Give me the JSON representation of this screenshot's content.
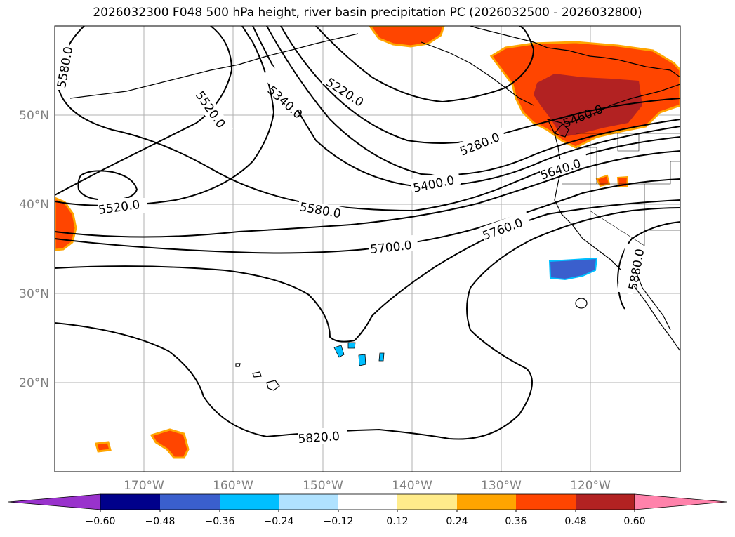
{
  "title": "2026032300 F048 500 hPa height, river basin precipitation PC (2026032500 - 2026032800)",
  "map": {
    "projection": "PlateCarree",
    "lon_range": [
      -180,
      -110
    ],
    "lat_range": [
      10,
      60
    ],
    "grid": true,
    "lat_labels": [
      "50°N",
      "40°N",
      "30°N",
      "20°N"
    ],
    "lon_labels": [
      "170°W",
      "160°W",
      "150°W",
      "140°W",
      "130°W",
      "120°W"
    ],
    "contour_labels": [
      "5580.0",
      "5520.0",
      "5340.0",
      "5220.0",
      "5520.0",
      "5280.0",
      "5460.0",
      "5400.0",
      "5640.0",
      "5580.0",
      "5760.0",
      "5700.0",
      "5880.0",
      "5820.0"
    ]
  },
  "colorbar": {
    "colors": [
      "#9932CC",
      "#00008B",
      "#3A5FCD",
      "#00BFFF",
      "#B0E2FF",
      "#FFFFFF",
      "#FFEC8B",
      "#FFA500",
      "#FF4500",
      "#B22222",
      "#FF82AB"
    ],
    "tick_labels": [
      "−0.60",
      "−0.48",
      "−0.36",
      "−0.24",
      "−0.12",
      "0.12",
      "0.24",
      "0.36",
      "0.48",
      "0.60"
    ],
    "extend": "both"
  }
}
